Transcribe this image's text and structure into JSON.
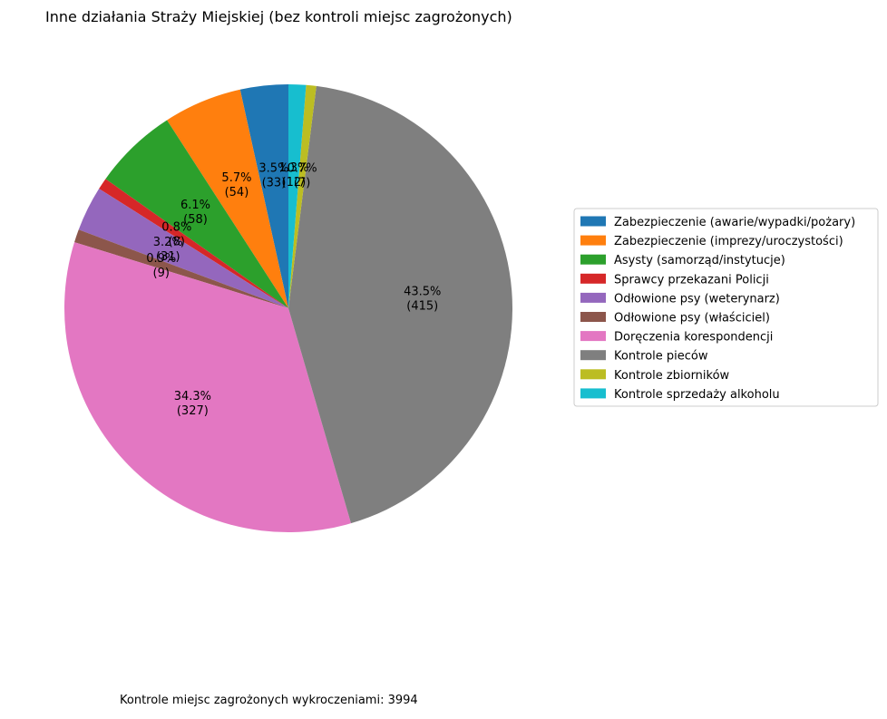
{
  "chart_data": {
    "type": "pie",
    "title": "Inne działania Straży Miejskiej (bez kontroli miejsc zagrożonych)",
    "categories": [
      "Zabezpieczenie (awarie/wypadki/pożary)",
      "Zabezpieczenie (imprezy/uroczystości)",
      "Asysty (samorząd/instytucje)",
      "Sprawcy przekazani Policji",
      "Odłowione psy (weterynarz)",
      "Odłowione psy (właściciel)",
      "Doręczenia korespondencji",
      "Kontrole pieców",
      "Kontrole zbiorników",
      "Kontrole sprzedaży alkoholu"
    ],
    "values": [
      33,
      54,
      58,
      8,
      31,
      9,
      327,
      415,
      7,
      12
    ],
    "value_labels": [
      "3.5%\n(33)",
      "5.7%\n(54)",
      "6.1%\n(58)",
      "0.8%\n(8)",
      "3.2%\n(31)",
      "0.9%\n(9)",
      "34.3%\n(327)",
      "43.5%\n(415)",
      "0.7%\n(7)",
      "1.3%\n(12)"
    ],
    "colors": [
      "#1f77b4",
      "#ff7f0e",
      "#2ca02c",
      "#d62728",
      "#9467bd",
      "#8c564b",
      "#e377c2",
      "#7f7f7f",
      "#bcbd22",
      "#17becf"
    ],
    "legend": "right",
    "annotation": "Kontrole miejsc zagrożonych wykroczeniami: 3994"
  }
}
